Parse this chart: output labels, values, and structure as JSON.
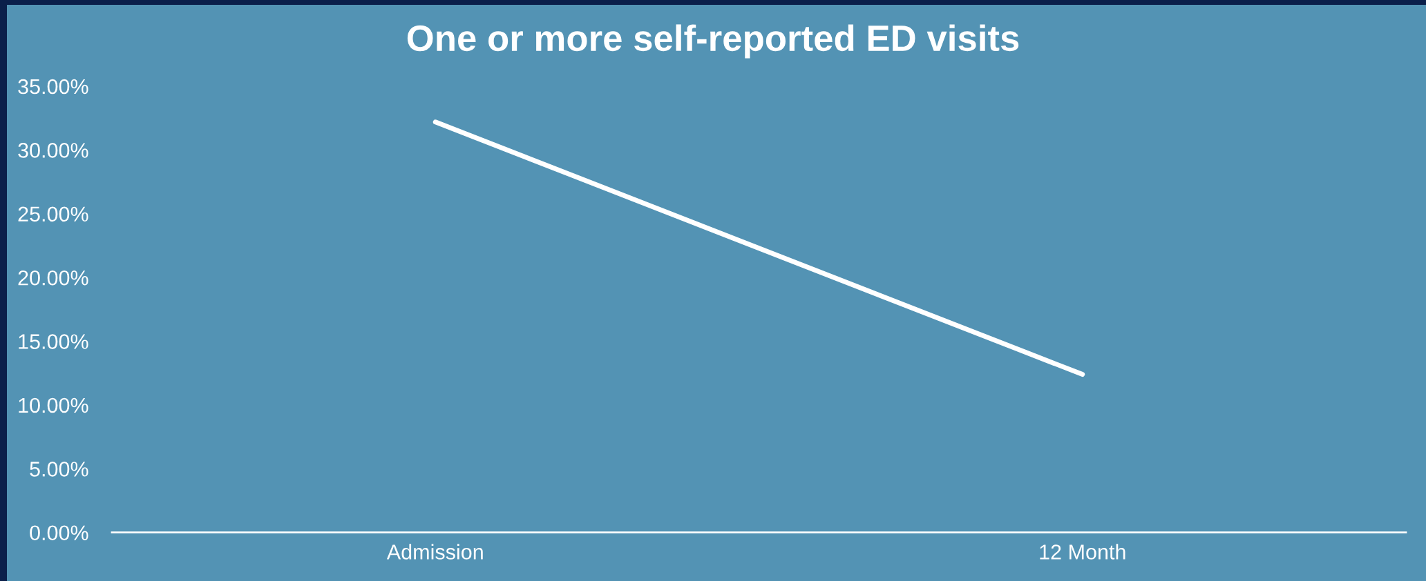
{
  "chart_data": {
    "type": "line",
    "title": "One or more self-reported ED visits",
    "categories": [
      "Admission",
      "12 Month"
    ],
    "series": [
      {
        "color": "#ffffff",
        "values": [
          32.2,
          12.4
        ]
      }
    ],
    "ylim": [
      0,
      35
    ],
    "yticks": [
      {
        "value": 0,
        "label": "0.00%"
      },
      {
        "value": 5,
        "label": "5.00%"
      },
      {
        "value": 10,
        "label": "10.00%"
      },
      {
        "value": 15,
        "label": "15.00%"
      },
      {
        "value": 20,
        "label": "20.00%"
      },
      {
        "value": 25,
        "label": "25.00%"
      },
      {
        "value": 30,
        "label": "30.00%"
      },
      {
        "value": 35,
        "label": "35.00%"
      }
    ],
    "grid": false,
    "marker": "none",
    "line_style": "solid"
  }
}
